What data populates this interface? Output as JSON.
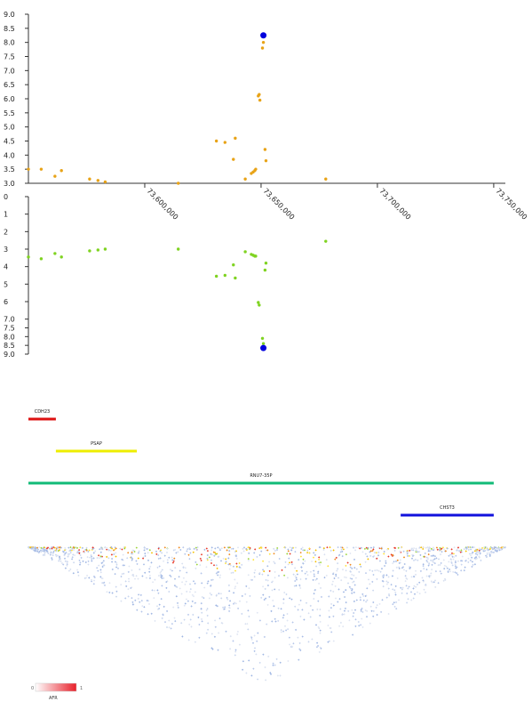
{
  "chart_data": [
    {
      "type": "scatter",
      "panel": "upper",
      "y_ticks": [
        "9.0",
        "8.5",
        "8.0",
        "7.5",
        "7.0",
        "6.5",
        "6.0",
        "5.5",
        "5.0",
        "4.5",
        "4.0",
        "3.5",
        "3.0"
      ],
      "ylim": [
        3,
        9
      ],
      "xlim": [
        73550000,
        73755000
      ],
      "x_ticks": [
        {
          "value": 73600000,
          "label": "73,600,000"
        },
        {
          "value": 73650000,
          "label": "73,650,000"
        },
        {
          "value": 73700000,
          "label": "73,700,000"
        },
        {
          "value": 73750000,
          "label": "73,750,000"
        }
      ],
      "point_color": "#e8a317",
      "lead_color": "#0000dd",
      "points": [
        {
          "x": 73550000,
          "y": 3.5
        },
        {
          "x": 73555500,
          "y": 3.5
        },
        {
          "x": 73561400,
          "y": 3.25
        },
        {
          "x": 73564200,
          "y": 3.45
        },
        {
          "x": 73576300,
          "y": 3.15
        },
        {
          "x": 73579900,
          "y": 3.1
        },
        {
          "x": 73583000,
          "y": 3.05
        },
        {
          "x": 73614400,
          "y": 3.0
        },
        {
          "x": 73630800,
          "y": 4.5
        },
        {
          "x": 73634500,
          "y": 4.45
        },
        {
          "x": 73638100,
          "y": 3.85
        },
        {
          "x": 73638900,
          "y": 4.6
        },
        {
          "x": 73643200,
          "y": 3.15
        },
        {
          "x": 73645800,
          "y": 3.35
        },
        {
          "x": 73646600,
          "y": 3.4
        },
        {
          "x": 73647300,
          "y": 3.45
        },
        {
          "x": 73647700,
          "y": 3.5
        },
        {
          "x": 73648800,
          "y": 6.1
        },
        {
          "x": 73649200,
          "y": 6.15
        },
        {
          "x": 73649500,
          "y": 5.95
        },
        {
          "x": 73650600,
          "y": 7.8
        },
        {
          "x": 73651000,
          "y": 8.0
        },
        {
          "x": 73651700,
          "y": 4.2
        },
        {
          "x": 73652100,
          "y": 3.8
        },
        {
          "x": 73677800,
          "y": 3.15
        }
      ],
      "lead_point": {
        "x": 73651000,
        "y": 8.25
      }
    },
    {
      "type": "scatter",
      "panel": "lower",
      "y_ticks": [
        "0",
        "1",
        "2",
        "3",
        "4",
        "5",
        "6",
        "7.0",
        "7.5",
        "8.0",
        "8.5",
        "9.0"
      ],
      "ylim": [
        0,
        9
      ],
      "point_color": "#7fd321",
      "lead_color": "#0000dd",
      "points": [
        {
          "x": 73550000,
          "y": 3.45
        },
        {
          "x": 73555500,
          "y": 3.55
        },
        {
          "x": 73561400,
          "y": 3.25
        },
        {
          "x": 73564200,
          "y": 3.45
        },
        {
          "x": 73576300,
          "y": 3.1
        },
        {
          "x": 73579900,
          "y": 3.05
        },
        {
          "x": 73583000,
          "y": 3.0
        },
        {
          "x": 73614400,
          "y": 3.0
        },
        {
          "x": 73630800,
          "y": 4.55
        },
        {
          "x": 73634500,
          "y": 4.5
        },
        {
          "x": 73638100,
          "y": 3.9
        },
        {
          "x": 73638900,
          "y": 4.65
        },
        {
          "x": 73643200,
          "y": 3.15
        },
        {
          "x": 73645800,
          "y": 3.3
        },
        {
          "x": 73646600,
          "y": 3.35
        },
        {
          "x": 73647300,
          "y": 3.4
        },
        {
          "x": 73647700,
          "y": 3.4
        },
        {
          "x": 73648800,
          "y": 6.05
        },
        {
          "x": 73649200,
          "y": 6.2
        },
        {
          "x": 73650600,
          "y": 8.1
        },
        {
          "x": 73651000,
          "y": 8.4
        },
        {
          "x": 73651700,
          "y": 4.2
        },
        {
          "x": 73652100,
          "y": 3.8
        },
        {
          "x": 73677800,
          "y": 2.55
        }
      ],
      "lead_point": {
        "x": 73651000,
        "y": 8.65
      }
    }
  ],
  "genes": [
    {
      "name": "CDH23",
      "start": 73550000,
      "end": 73561800,
      "color": "#dd1111"
    },
    {
      "name": "PSAP",
      "start": 73561800,
      "end": 73596600,
      "color": "#eeee00"
    },
    {
      "name": "RNU7-35P",
      "start": 73550000,
      "end": 73750000,
      "color": "#11bb77"
    },
    {
      "name": "CHST3",
      "start": 73710000,
      "end": 73750000,
      "color": "#1111dd"
    }
  ],
  "ld_legend": {
    "min_label": "0",
    "max_label": "1",
    "title": "AFR"
  }
}
